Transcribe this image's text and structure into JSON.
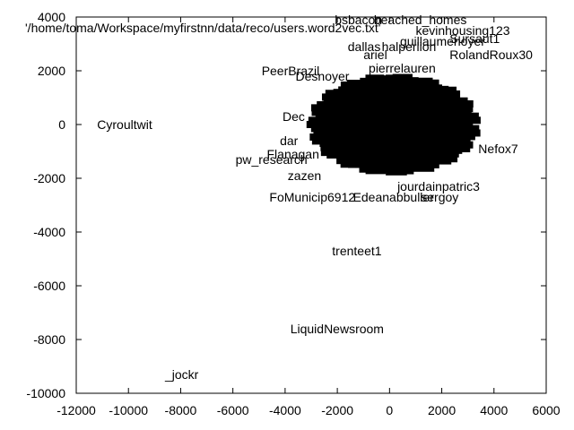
{
  "chart_data": {
    "type": "scatter",
    "title": "'/home/toma/Workspace/myfirstnn/data/reco/users.word2vec.txt'",
    "xlabel": "",
    "ylabel": "",
    "xlim": [
      -12000,
      6000
    ],
    "ylim": [
      -10000,
      4000
    ],
    "x_ticks": [
      -12000,
      -10000,
      -8000,
      -6000,
      -4000,
      -2000,
      0,
      2000,
      4000,
      6000
    ],
    "y_ticks": [
      -10000,
      -8000,
      -6000,
      -4000,
      -2000,
      0,
      2000,
      4000
    ],
    "grid": false,
    "legend": "none",
    "cluster": {
      "center": [
        0,
        0
      ],
      "radius_x": 2800,
      "radius_y": 1700
    },
    "points": [
      {
        "label": "_jockr",
        "x": -8600,
        "y": -9300
      },
      {
        "label": "LiquidNewsroom",
        "x": -3800,
        "y": -7600
      },
      {
        "label": "trenteet1",
        "x": -2200,
        "y": -4700
      },
      {
        "label": "FoMunicip6912",
        "x": -4600,
        "y": -2700
      },
      {
        "label": "Edeanabbuller",
        "x": -1400,
        "y": -2700
      },
      {
        "label": "jourdainpatric3",
        "x": 300,
        "y": -2300
      },
      {
        "label": "sergoy",
        "x": 1200,
        "y": -2700
      },
      {
        "label": "Cyroultwit",
        "x": -11200,
        "y": 0
      },
      {
        "label": "PeerBrazil",
        "x": -4900,
        "y": 2000
      },
      {
        "label": "pw_research",
        "x": -5900,
        "y": -1300
      },
      {
        "label": "Flanagan",
        "x": -4700,
        "y": -1100
      },
      {
        "label": "zazen",
        "x": -3900,
        "y": -1900
      },
      {
        "label": "Desnoyer",
        "x": -3600,
        "y": 1800
      },
      {
        "label": "pierrelauren",
        "x": -800,
        "y": 2100
      },
      {
        "label": "bsbacon",
        "x": -2100,
        "y": 3900
      },
      {
        "label": "beached_homes",
        "x": -600,
        "y": 3900
      },
      {
        "label": "kevinhousing123",
        "x": 1000,
        "y": 3500
      },
      {
        "label": "guillaumehoyer",
        "x": 400,
        "y": 3100
      },
      {
        "label": "dallas",
        "x": -1600,
        "y": 2900
      },
      {
        "label": "halperlion",
        "x": -300,
        "y": 2900
      },
      {
        "label": "ariel",
        "x": -1000,
        "y": 2600
      },
      {
        "label": "Sursaut1",
        "x": 2300,
        "y": 3200
      },
      {
        "label": "RolandRoux30",
        "x": 2300,
        "y": 2600
      },
      {
        "label": "Nefox7",
        "x": 3400,
        "y": -900
      },
      {
        "label": "Dec",
        "x": -4100,
        "y": 300
      },
      {
        "label": "dar",
        "x": -4200,
        "y": -600
      }
    ]
  }
}
